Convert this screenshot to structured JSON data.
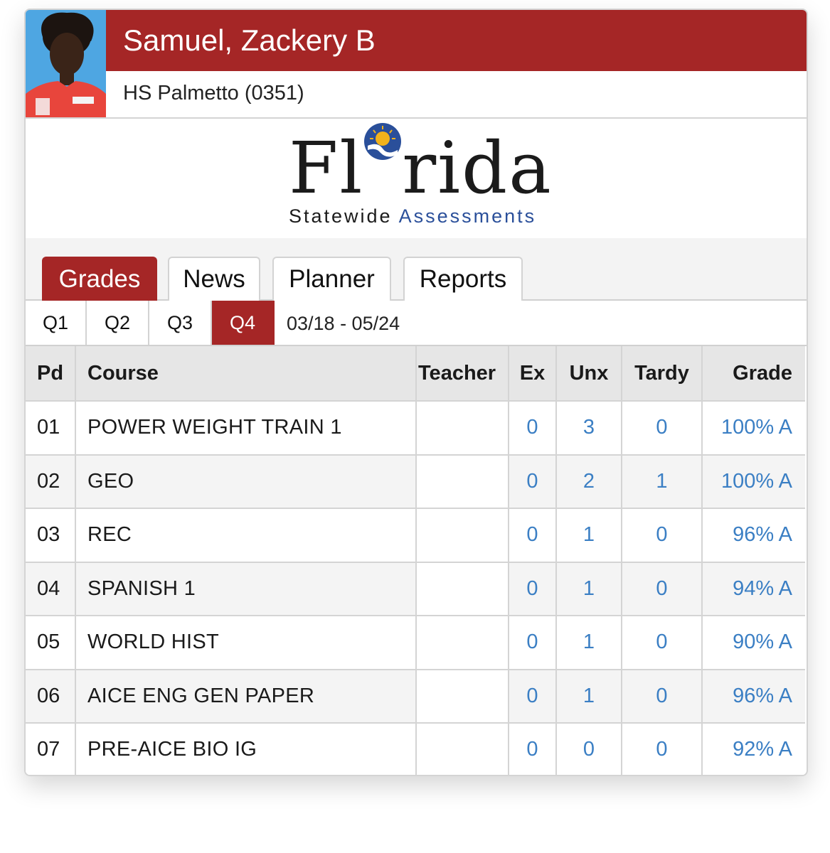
{
  "student": {
    "name": "Samuel, Zackery B",
    "school": "HS Palmetto (0351)"
  },
  "logo": {
    "word_left": "Fl",
    "word_right": "rida",
    "sub_left": "Statewide",
    "sub_right": "Assessments"
  },
  "tabs": [
    {
      "label": "Grades",
      "active": true
    },
    {
      "label": "News",
      "active": false
    },
    {
      "label": "Planner",
      "active": false
    },
    {
      "label": "Reports",
      "active": false
    }
  ],
  "quarters": [
    {
      "label": "Q1",
      "active": false
    },
    {
      "label": "Q2",
      "active": false
    },
    {
      "label": "Q3",
      "active": false
    },
    {
      "label": "Q4",
      "active": true
    }
  ],
  "date_range": "03/18 - 05/24",
  "table": {
    "headers": {
      "pd": "Pd",
      "course": "Course",
      "teacher": "Teacher",
      "ex": "Ex",
      "unx": "Unx",
      "tardy": "Tardy",
      "grade": "Grade"
    },
    "rows": [
      {
        "pd": "01",
        "course": "POWER WEIGHT TRAIN 1",
        "teacher": "",
        "ex": "0",
        "unx": "3",
        "tardy": "0",
        "grade": "100% A"
      },
      {
        "pd": "02",
        "course": "GEO",
        "teacher": "",
        "ex": "0",
        "unx": "2",
        "tardy": "1",
        "grade": "100% A"
      },
      {
        "pd": "03",
        "course": "REC",
        "teacher": "",
        "ex": "0",
        "unx": "1",
        "tardy": "0",
        "grade": "96% A"
      },
      {
        "pd": "04",
        "course": "SPANISH 1",
        "teacher": "",
        "ex": "0",
        "unx": "1",
        "tardy": "0",
        "grade": "94% A"
      },
      {
        "pd": "05",
        "course": "WORLD HIST",
        "teacher": "",
        "ex": "0",
        "unx": "1",
        "tardy": "0",
        "grade": "90% A"
      },
      {
        "pd": "06",
        "course": "AICE ENG GEN PAPER",
        "teacher": "",
        "ex": "0",
        "unx": "1",
        "tardy": "0",
        "grade": "96% A"
      },
      {
        "pd": "07",
        "course": "PRE-AICE BIO IG",
        "teacher": "",
        "ex": "0",
        "unx": "0",
        "tardy": "0",
        "grade": "92% A"
      }
    ]
  },
  "colors": {
    "accent": "#a52626",
    "link": "#3b7fc4",
    "logo_blue": "#2a4f9a",
    "logo_gold": "#f2b21b"
  }
}
